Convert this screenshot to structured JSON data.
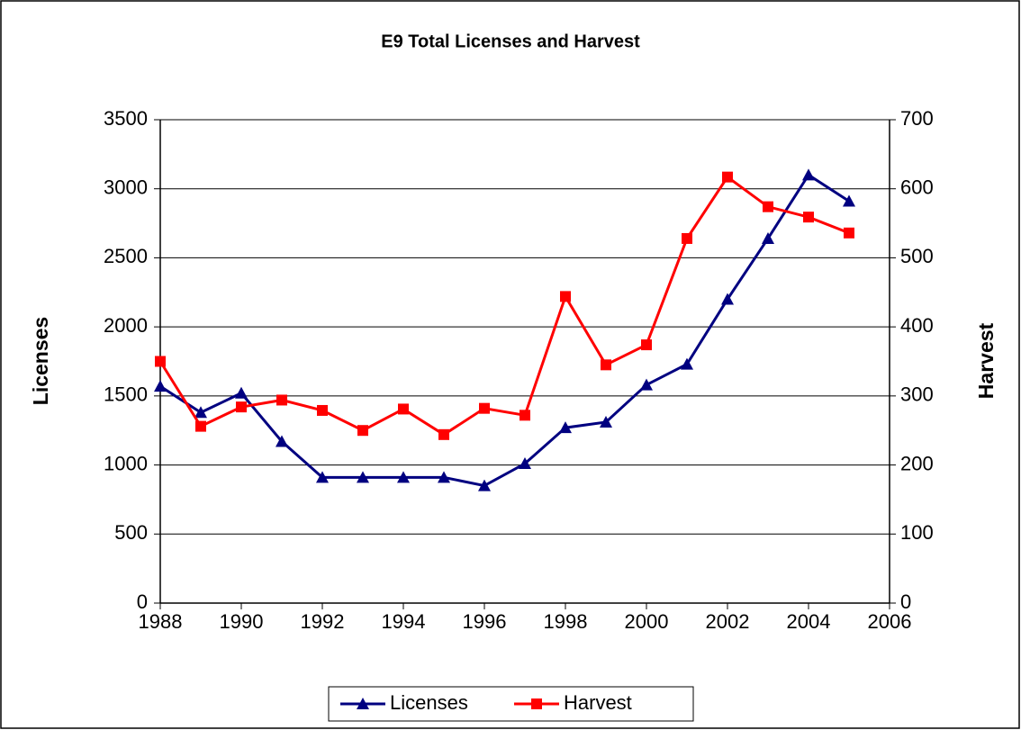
{
  "chart_data": {
    "type": "line",
    "title": "E9 Total Licenses and Harvest",
    "y_label": "Licenses",
    "y2_label": "Harvest",
    "x": [
      1988,
      1989,
      1990,
      1991,
      1992,
      1993,
      1994,
      1995,
      1996,
      1997,
      1998,
      1999,
      2000,
      2001,
      2002,
      2003,
      2004,
      2005
    ],
    "series": [
      {
        "name": "Licenses",
        "color": "#000080",
        "marker": "triangle",
        "values": [
          1570,
          1380,
          1520,
          1170,
          910,
          910,
          910,
          910,
          850,
          1010,
          1270,
          1310,
          1580,
          1730,
          2200,
          2640,
          3100,
          2910
        ]
      },
      {
        "name": "Harvest",
        "color": "#ff0000",
        "marker": "square",
        "axis": "y2",
        "values": [
          350,
          256,
          284,
          294,
          279,
          250,
          281,
          244,
          282,
          272,
          444,
          345,
          374,
          528,
          617,
          574,
          559,
          536
        ]
      }
    ],
    "xlim": [
      1988,
      2006
    ],
    "xticks": [
      1988,
      1990,
      1992,
      1994,
      1996,
      1998,
      2000,
      2002,
      2004,
      2006
    ],
    "ylim": [
      0,
      3500
    ],
    "yticks": [
      0,
      500,
      1000,
      1500,
      2000,
      2500,
      3000,
      3500
    ],
    "y2lim": [
      0,
      700
    ],
    "y2ticks": [
      0,
      100,
      200,
      300,
      400,
      500,
      600,
      700
    ],
    "grid": true,
    "legend": "bottom"
  }
}
